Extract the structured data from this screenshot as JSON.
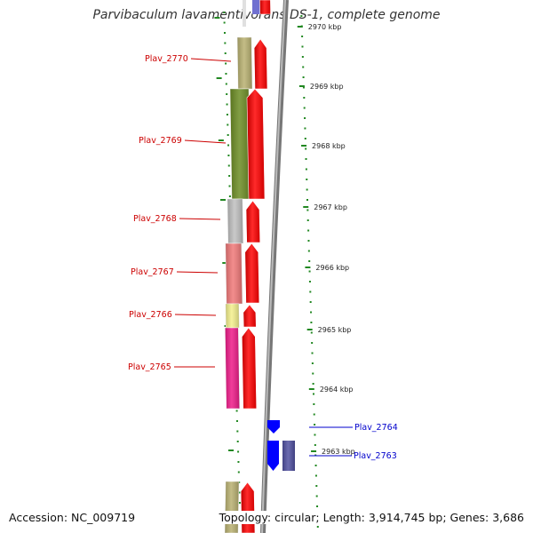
{
  "title": "Parvibaculum lavamentivorans DS-1, complete genome",
  "footer": {
    "accession": "Accession: NC_009719",
    "summary": "Topology: circular; Length: 3,914,745 bp; Genes: 3,686"
  },
  "colors": {
    "label_red": "#cc0000",
    "label_blue": "#0000cc",
    "ruler_green": "#228822",
    "arrow_red": "#ff0000",
    "arrow_blue": "#0000ff",
    "axis_gray": "#888888"
  },
  "kbp_ticks": [
    "2970 kbp",
    "2969 kbp",
    "2968 kbp",
    "2967 kbp",
    "2966 kbp",
    "2965 kbp",
    "2964 kbp",
    "2963 kbp"
  ],
  "genes_left": [
    {
      "label": "Plav_2770",
      "color": "#b8b070"
    },
    {
      "label": "Plav_2769",
      "color": "#6b8c23"
    },
    {
      "label": "Plav_2768",
      "color": "#bfbfbf"
    },
    {
      "label": "Plav_2767",
      "color": "#f07878"
    },
    {
      "label": "Plav_2766",
      "color": "#f4f08c"
    },
    {
      "label": "Plav_2765",
      "color": "#ee1a88"
    }
  ],
  "genes_right": [
    {
      "label": "Plav_2764",
      "color": "#0000ff"
    },
    {
      "label": "Plav_2763",
      "color": "#5050a0"
    }
  ]
}
